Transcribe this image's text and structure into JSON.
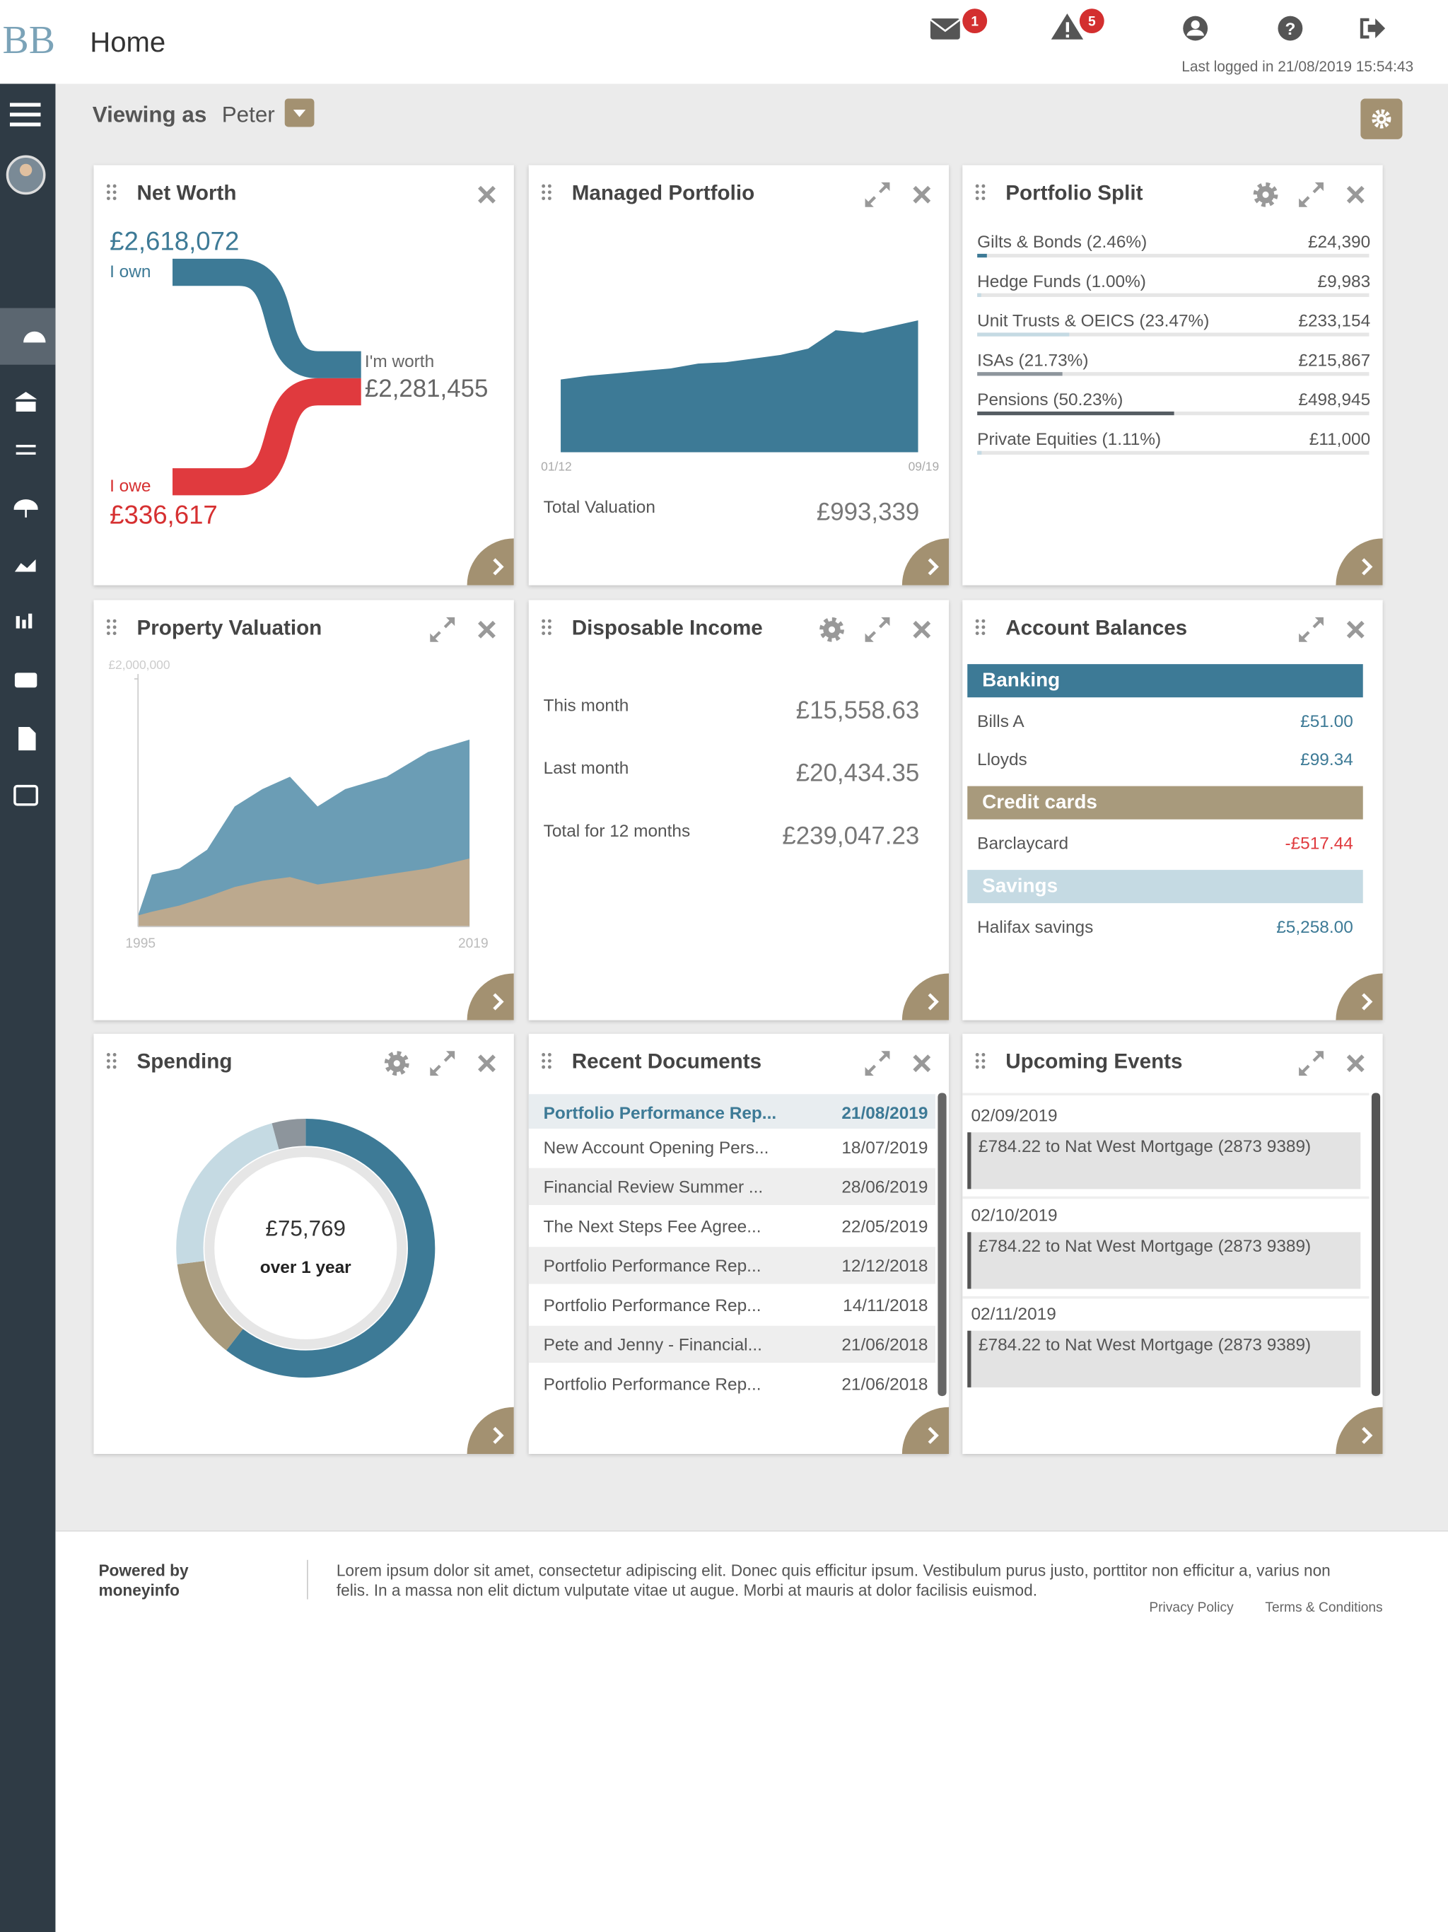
{
  "header": {
    "logo": "BB",
    "title": "Home",
    "messages_count": 1,
    "alerts_count": 5,
    "last_logged_in": "Last logged in 21/08/2019 15:54:43"
  },
  "toolbar": {
    "viewing_as_label": "Viewing as",
    "viewing_as": "Peter"
  },
  "net_worth": {
    "title": "Net Worth",
    "own_value": "£2,618,072",
    "own_label": "I own",
    "worth_label": "I'm worth",
    "worth_value": "£2,281,455",
    "owe_label": "I owe",
    "owe_value": "£336,617"
  },
  "managed_portfolio": {
    "title": "Managed Portfolio",
    "chart": {
      "type": "area",
      "color": "#3d7a96",
      "categories": [
        "01/12",
        null,
        null,
        null,
        null,
        null,
        null,
        null,
        null,
        null,
        null,
        null,
        null,
        "09/19"
      ],
      "values": [
        548000,
        576000,
        594000,
        613000,
        631000,
        668000,
        678000,
        705000,
        733000,
        780000,
        919000,
        900000,
        947000,
        993339
      ]
    },
    "total_label": "Total Valuation",
    "total_value": "£993,339"
  },
  "portfolio_split": {
    "title": "Portfolio Split",
    "items": [
      {
        "label": "Gilts & Bonds (2.46%)",
        "share": 2.46,
        "value": "£24,390",
        "color": "#3d7a96"
      },
      {
        "label": "Hedge Funds (1.00%)",
        "share": 1.0,
        "value": "£9,983",
        "color": "#c5dae3"
      },
      {
        "label": "Unit Trusts & OEICS (23.47%)",
        "share": 23.47,
        "value": "£233,154",
        "color": "#c5dae3"
      },
      {
        "label": "ISAs (21.73%)",
        "share": 21.73,
        "value": "£215,867",
        "color": "#8d959c"
      },
      {
        "label": "Pensions (50.23%)",
        "share": 50.23,
        "value": "£498,945",
        "color": "#555c62"
      },
      {
        "label": "Private Equities (1.11%)",
        "share": 1.11,
        "value": "£11,000",
        "color": "#c5dae3"
      }
    ]
  },
  "property_valuation": {
    "title": "Property Valuation",
    "chart": {
      "type": "area",
      "x": [
        1995,
        1996,
        1998,
        2000,
        2002,
        2004,
        2006,
        2008,
        2010,
        2013,
        2016,
        2019
      ],
      "xlim": [
        1995,
        2019
      ],
      "xticks": [
        1995,
        2019
      ],
      "ylim": [
        0,
        2000000
      ],
      "yticks": [
        {
          "value": 2000000,
          "label": "£2,000,000"
        }
      ],
      "series": [
        {
          "color": "#6b9db5",
          "values": [
            90000,
            420000,
            470000,
            620000,
            970000,
            1110000,
            1210000,
            970000,
            1110000,
            1210000,
            1410000,
            1510000
          ]
        },
        {
          "color": "#bca98e",
          "values": [
            90000,
            120000,
            170000,
            240000,
            320000,
            370000,
            400000,
            340000,
            370000,
            420000,
            470000,
            550000
          ]
        }
      ]
    }
  },
  "disposable_income": {
    "title": "Disposable Income",
    "rows": [
      {
        "label": "This month",
        "value": "£15,558.63"
      },
      {
        "label": "Last month",
        "value": "£20,434.35"
      },
      {
        "label": "Total for 12 months",
        "value": "£239,047.23"
      }
    ]
  },
  "account_balances": {
    "title": "Account Balances",
    "groups": [
      {
        "name": "Banking",
        "color": "#3d7a96",
        "accounts": [
          {
            "name": "Bills A",
            "balance": "£51.00"
          },
          {
            "name": "Lloyds",
            "balance": "£99.34"
          }
        ]
      },
      {
        "name": "Credit cards",
        "color": "#a89a7c",
        "accounts": [
          {
            "name": "Barclaycard",
            "balance": "-£517.44"
          }
        ]
      },
      {
        "name": "Savings",
        "color": "#c5dae3",
        "accounts": [
          {
            "name": "Halifax savings",
            "balance": "£5,258.00"
          }
        ]
      }
    ]
  },
  "spending": {
    "title": "Spending",
    "chart": {
      "type": "donut",
      "values": [
        60.5,
        12.5,
        22.8,
        4.2
      ],
      "colors": [
        "#3d7a96",
        "#a89a7c",
        "#c5dae3",
        "#8d959c"
      ]
    },
    "total": "£75,769",
    "period": "over 1 year"
  },
  "recent_documents": {
    "title": "Recent Documents",
    "rows": [
      [
        "Portfolio Performance Rep...",
        "21/08/2019"
      ],
      [
        "New Account Opening Pers...",
        "18/07/2019"
      ],
      [
        "Financial Review Summer ...",
        "28/06/2019"
      ],
      [
        "The Next Steps Fee Agree...",
        "22/05/2019"
      ],
      [
        "Portfolio Performance Rep...",
        "12/12/2018"
      ],
      [
        "Portfolio Performance Rep...",
        "14/11/2018"
      ],
      [
        "Pete and Jenny - Financial...",
        "21/06/2018"
      ],
      [
        "Portfolio Performance Rep...",
        "21/06/2018"
      ]
    ]
  },
  "upcoming_events": {
    "title": "Upcoming Events",
    "events": [
      {
        "date": "02/09/2019",
        "text": "£784.22 to Nat West Mortgage (2873 9389)"
      },
      {
        "date": "02/10/2019",
        "text": "£784.22 to Nat West Mortgage (2873 9389)"
      },
      {
        "date": "02/11/2019",
        "text": "£784.22 to Nat West Mortgage (2873 9389)"
      }
    ]
  },
  "footer": {
    "powered_by": "Powered by moneyinfo",
    "text": "Lorem ipsum dolor sit amet, consectetur adipiscing elit. Donec quis efficitur ipsum. Vestibulum purus justo, porttitor non efficitur a, varius non felis. In a massa non elit dictum vulputate vitae ut augue. Morbi at mauris at dolor facilisis euismod.",
    "privacy": "Privacy Policy",
    "terms": "Terms & Conditions"
  }
}
